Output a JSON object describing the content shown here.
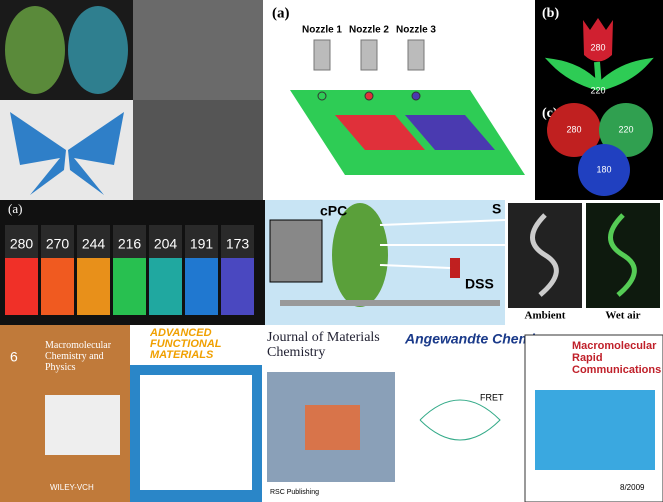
{
  "nozzle_panel": {
    "label": "(a)",
    "nozzles": [
      "Nozzle 1",
      "Nozzle 2",
      "Nozzle 3"
    ]
  },
  "tulip_panel": {
    "label": "(b)",
    "values": [
      280,
      220
    ]
  },
  "circles_panel": {
    "label": "(c)",
    "values": [
      280,
      220,
      180
    ]
  },
  "strips_panel": {
    "label": "(a)",
    "values": [
      280,
      270,
      244,
      216,
      204,
      191,
      173
    ]
  },
  "device_panel": {
    "labels": [
      "cPC",
      "DSS",
      "S"
    ]
  },
  "dragon_panel": {
    "captions": [
      "Ambient",
      "Wet air"
    ]
  },
  "covers": [
    {
      "issue": "6",
      "title": "Macromolecular Chemistry and Physics",
      "publisher": "WILEY-VCH"
    },
    {
      "title": "ADVANCED FUNCTIONAL MATERIALS"
    },
    {
      "title": "Journal of Materials Chemistry",
      "publisher": "RSC Publishing"
    },
    {
      "title": "Angewandte Chemie",
      "note": "FRET"
    },
    {
      "title": "Macromolecular Rapid Communications",
      "issue": "8/2009"
    }
  ]
}
